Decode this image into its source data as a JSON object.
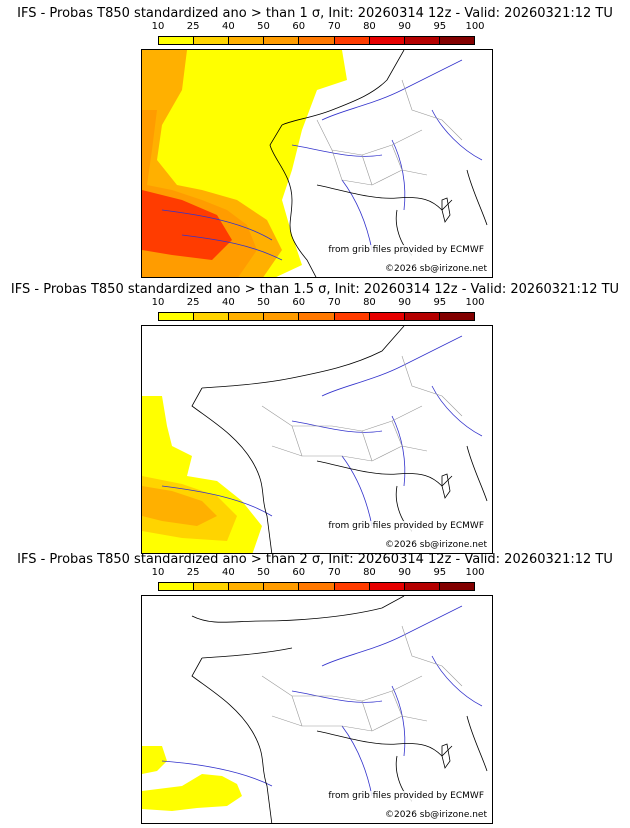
{
  "legend": {
    "ticks": [
      "10",
      "25",
      "40",
      "50",
      "60",
      "70",
      "80",
      "90",
      "95",
      "100"
    ],
    "colors": [
      "#ffff00",
      "#ffd400",
      "#ffb000",
      "#ff9c00",
      "#ff7800",
      "#ff3c00",
      "#e60000",
      "#b40000",
      "#820000",
      "#4b0000"
    ]
  },
  "panels": [
    {
      "title": "IFS - Probas T850  standardized ano > than 1 σ, Init: 20260314 12z - Valid: 20260321:12 TU"
    },
    {
      "title": "IFS - Probas T850  standardized ano > than 1.5 σ, Init: 20260314 12z - Valid: 20260321:12 TU"
    },
    {
      "title": "IFS - Probas T850  standardized ano > than 2 σ, Init: 20260314 12z - Valid: 20260321:12 TU"
    }
  ],
  "credits": {
    "source": "from grib files provided by ECMWF",
    "copyright": "©2026 sb@irizone.net"
  }
}
